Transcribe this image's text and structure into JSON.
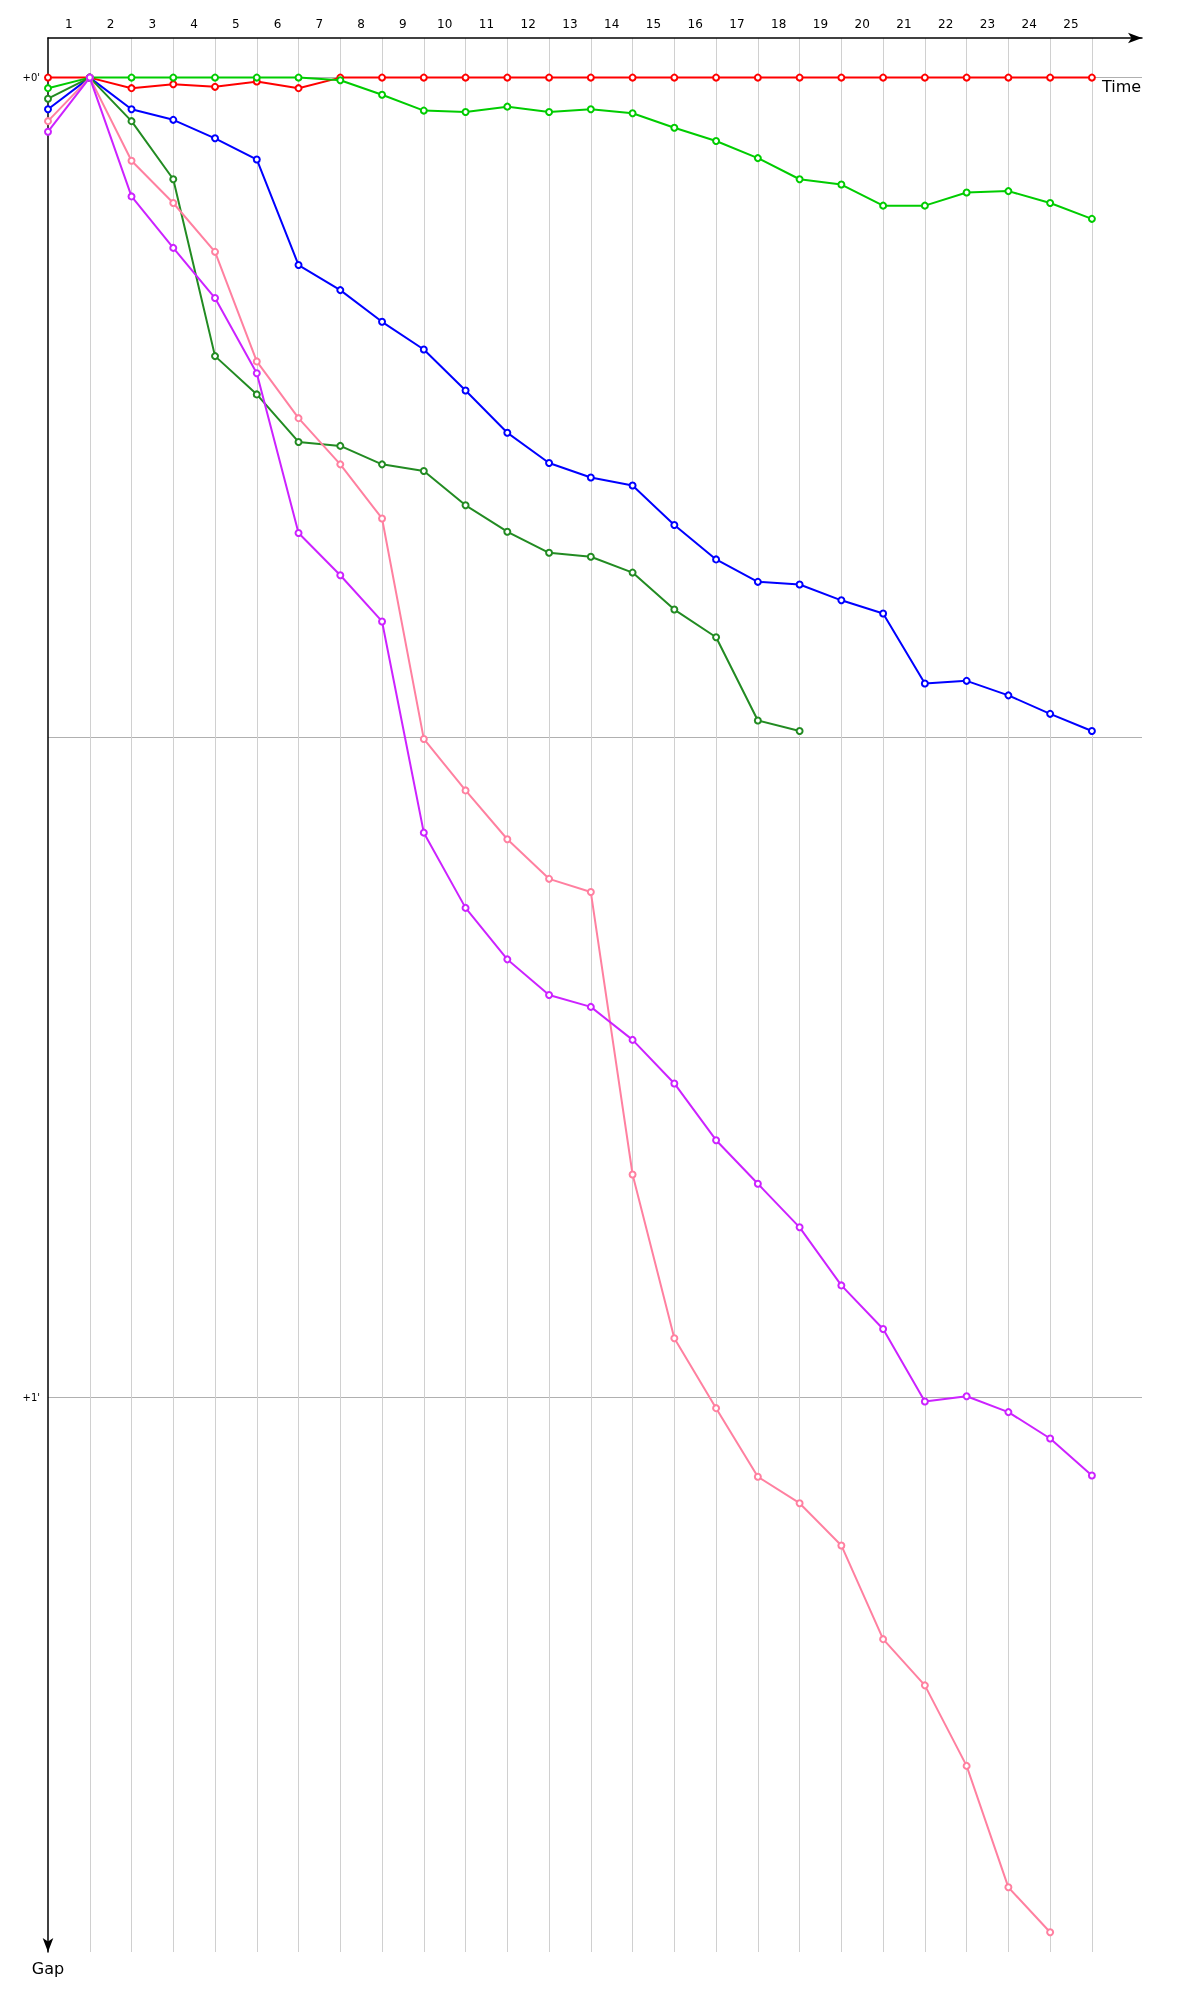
{
  "chart_data": {
    "type": "line",
    "xlabel": "Time",
    "ylabel": "Gap",
    "marker": "circle",
    "line_style": "solid",
    "grid": true,
    "x": [
      0,
      1,
      2,
      3,
      4,
      5,
      6,
      7,
      8,
      9,
      10,
      11,
      12,
      13,
      14,
      15,
      16,
      17,
      18,
      19,
      20,
      21,
      22,
      23,
      24,
      25
    ],
    "xlim": [
      0,
      26.2
    ],
    "xticks": [
      {
        "value": 0.5,
        "label": "1"
      },
      {
        "value": 1.5,
        "label": "2"
      },
      {
        "value": 2.5,
        "label": "3"
      },
      {
        "value": 3.5,
        "label": "4"
      },
      {
        "value": 4.5,
        "label": "5"
      },
      {
        "value": 5.5,
        "label": "6"
      },
      {
        "value": 6.5,
        "label": "7"
      },
      {
        "value": 7.5,
        "label": "8"
      },
      {
        "value": 8.5,
        "label": "9"
      },
      {
        "value": 9.5,
        "label": "10"
      },
      {
        "value": 10.5,
        "label": "11"
      },
      {
        "value": 11.5,
        "label": "12"
      },
      {
        "value": 12.5,
        "label": "13"
      },
      {
        "value": 13.5,
        "label": "14"
      },
      {
        "value": 14.5,
        "label": "15"
      },
      {
        "value": 15.5,
        "label": "16"
      },
      {
        "value": 16.5,
        "label": "17"
      },
      {
        "value": 17.5,
        "label": "18"
      },
      {
        "value": 18.5,
        "label": "19"
      },
      {
        "value": 19.5,
        "label": "20"
      },
      {
        "value": 20.5,
        "label": "21"
      },
      {
        "value": 21.5,
        "label": "22"
      },
      {
        "value": 22.5,
        "label": "23"
      },
      {
        "value": 23.5,
        "label": "24"
      },
      {
        "value": 24.5,
        "label": "25"
      },
      {
        "value": 1,
        "label": null
      },
      {
        "value": 2,
        "label": null
      },
      {
        "value": 3,
        "label": null
      },
      {
        "value": 4,
        "label": null
      },
      {
        "value": 5,
        "label": null
      },
      {
        "value": 6,
        "label": null
      },
      {
        "value": 7,
        "label": null
      },
      {
        "value": 8,
        "label": null
      },
      {
        "value": 9,
        "label": null
      },
      {
        "value": 10,
        "label": null
      },
      {
        "value": 11,
        "label": null
      },
      {
        "value": 12,
        "label": null
      },
      {
        "value": 13,
        "label": null
      },
      {
        "value": 14,
        "label": null
      },
      {
        "value": 15,
        "label": null
      },
      {
        "value": 16,
        "label": null
      },
      {
        "value": 17,
        "label": null
      },
      {
        "value": 18,
        "label": null
      },
      {
        "value": 19,
        "label": null
      },
      {
        "value": 20,
        "label": null
      },
      {
        "value": 21,
        "label": null
      },
      {
        "value": 22,
        "label": null
      },
      {
        "value": 23,
        "label": null
      },
      {
        "value": 24,
        "label": null
      },
      {
        "value": 25,
        "label": null
      }
    ],
    "ylim": [
      1.42,
      -0.03
    ],
    "yticks": [
      {
        "value": 0,
        "label": "+0'"
      },
      {
        "value": 0.5,
        "label": null
      },
      {
        "value": 1,
        "label": "+1'"
      }
    ],
    "series": [
      {
        "color": "#ff0000",
        "values": [
          0,
          0,
          0.008,
          0.005,
          0.007,
          0.003,
          0.008,
          0,
          0,
          0,
          0,
          0,
          0,
          0,
          0,
          0,
          0,
          0,
          0,
          0,
          0,
          0,
          0,
          0,
          0,
          0
        ]
      },
      {
        "color": "#00cc00",
        "values": [
          0.008,
          0,
          0,
          0,
          0,
          0,
          0,
          0.002,
          0.013,
          0.025,
          0.026,
          0.022,
          0.026,
          0.024,
          0.027,
          0.038,
          0.048,
          0.061,
          0.077,
          0.081,
          0.097,
          0.097,
          0.087,
          0.086,
          0.095,
          0.107
        ]
      },
      {
        "color": "#0000ff",
        "values": [
          0.024,
          0,
          0.024,
          0.032,
          0.046,
          0.062,
          0.142,
          0.161,
          0.185,
          0.206,
          0.237,
          0.269,
          0.292,
          0.303,
          0.309,
          0.339,
          0.365,
          0.382,
          0.384,
          0.396,
          0.406,
          0.459,
          0.457,
          0.468,
          0.482,
          0.495
        ]
      },
      {
        "color": "#228b22",
        "values": [
          0.016,
          0,
          0.033,
          0.077,
          0.211,
          0.24,
          0.276,
          0.279,
          0.293,
          0.298,
          0.324,
          0.344,
          0.36,
          0.363,
          0.375,
          0.403,
          0.424,
          0.487,
          0.495,
          null,
          null,
          null,
          null,
          null,
          null,
          null
        ]
      },
      {
        "color": "#ff80a0",
        "values": [
          0.033,
          0,
          0.063,
          0.095,
          0.132,
          0.215,
          0.258,
          0.293,
          0.334,
          0.501,
          0.54,
          0.577,
          0.607,
          0.617,
          0.831,
          0.955,
          1.008,
          1.06,
          1.08,
          1.112,
          1.183,
          1.218,
          1.279,
          1.371,
          1.405,
          null
        ]
      },
      {
        "color": "#cc22ff",
        "values": [
          0.041,
          0,
          0.09,
          0.129,
          0.167,
          0.224,
          0.345,
          0.377,
          0.412,
          0.572,
          0.629,
          0.668,
          0.695,
          0.704,
          0.729,
          0.762,
          0.805,
          0.838,
          0.871,
          0.915,
          0.948,
          1.003,
          0.999,
          1.011,
          1.031,
          1.059
        ]
      }
    ]
  }
}
